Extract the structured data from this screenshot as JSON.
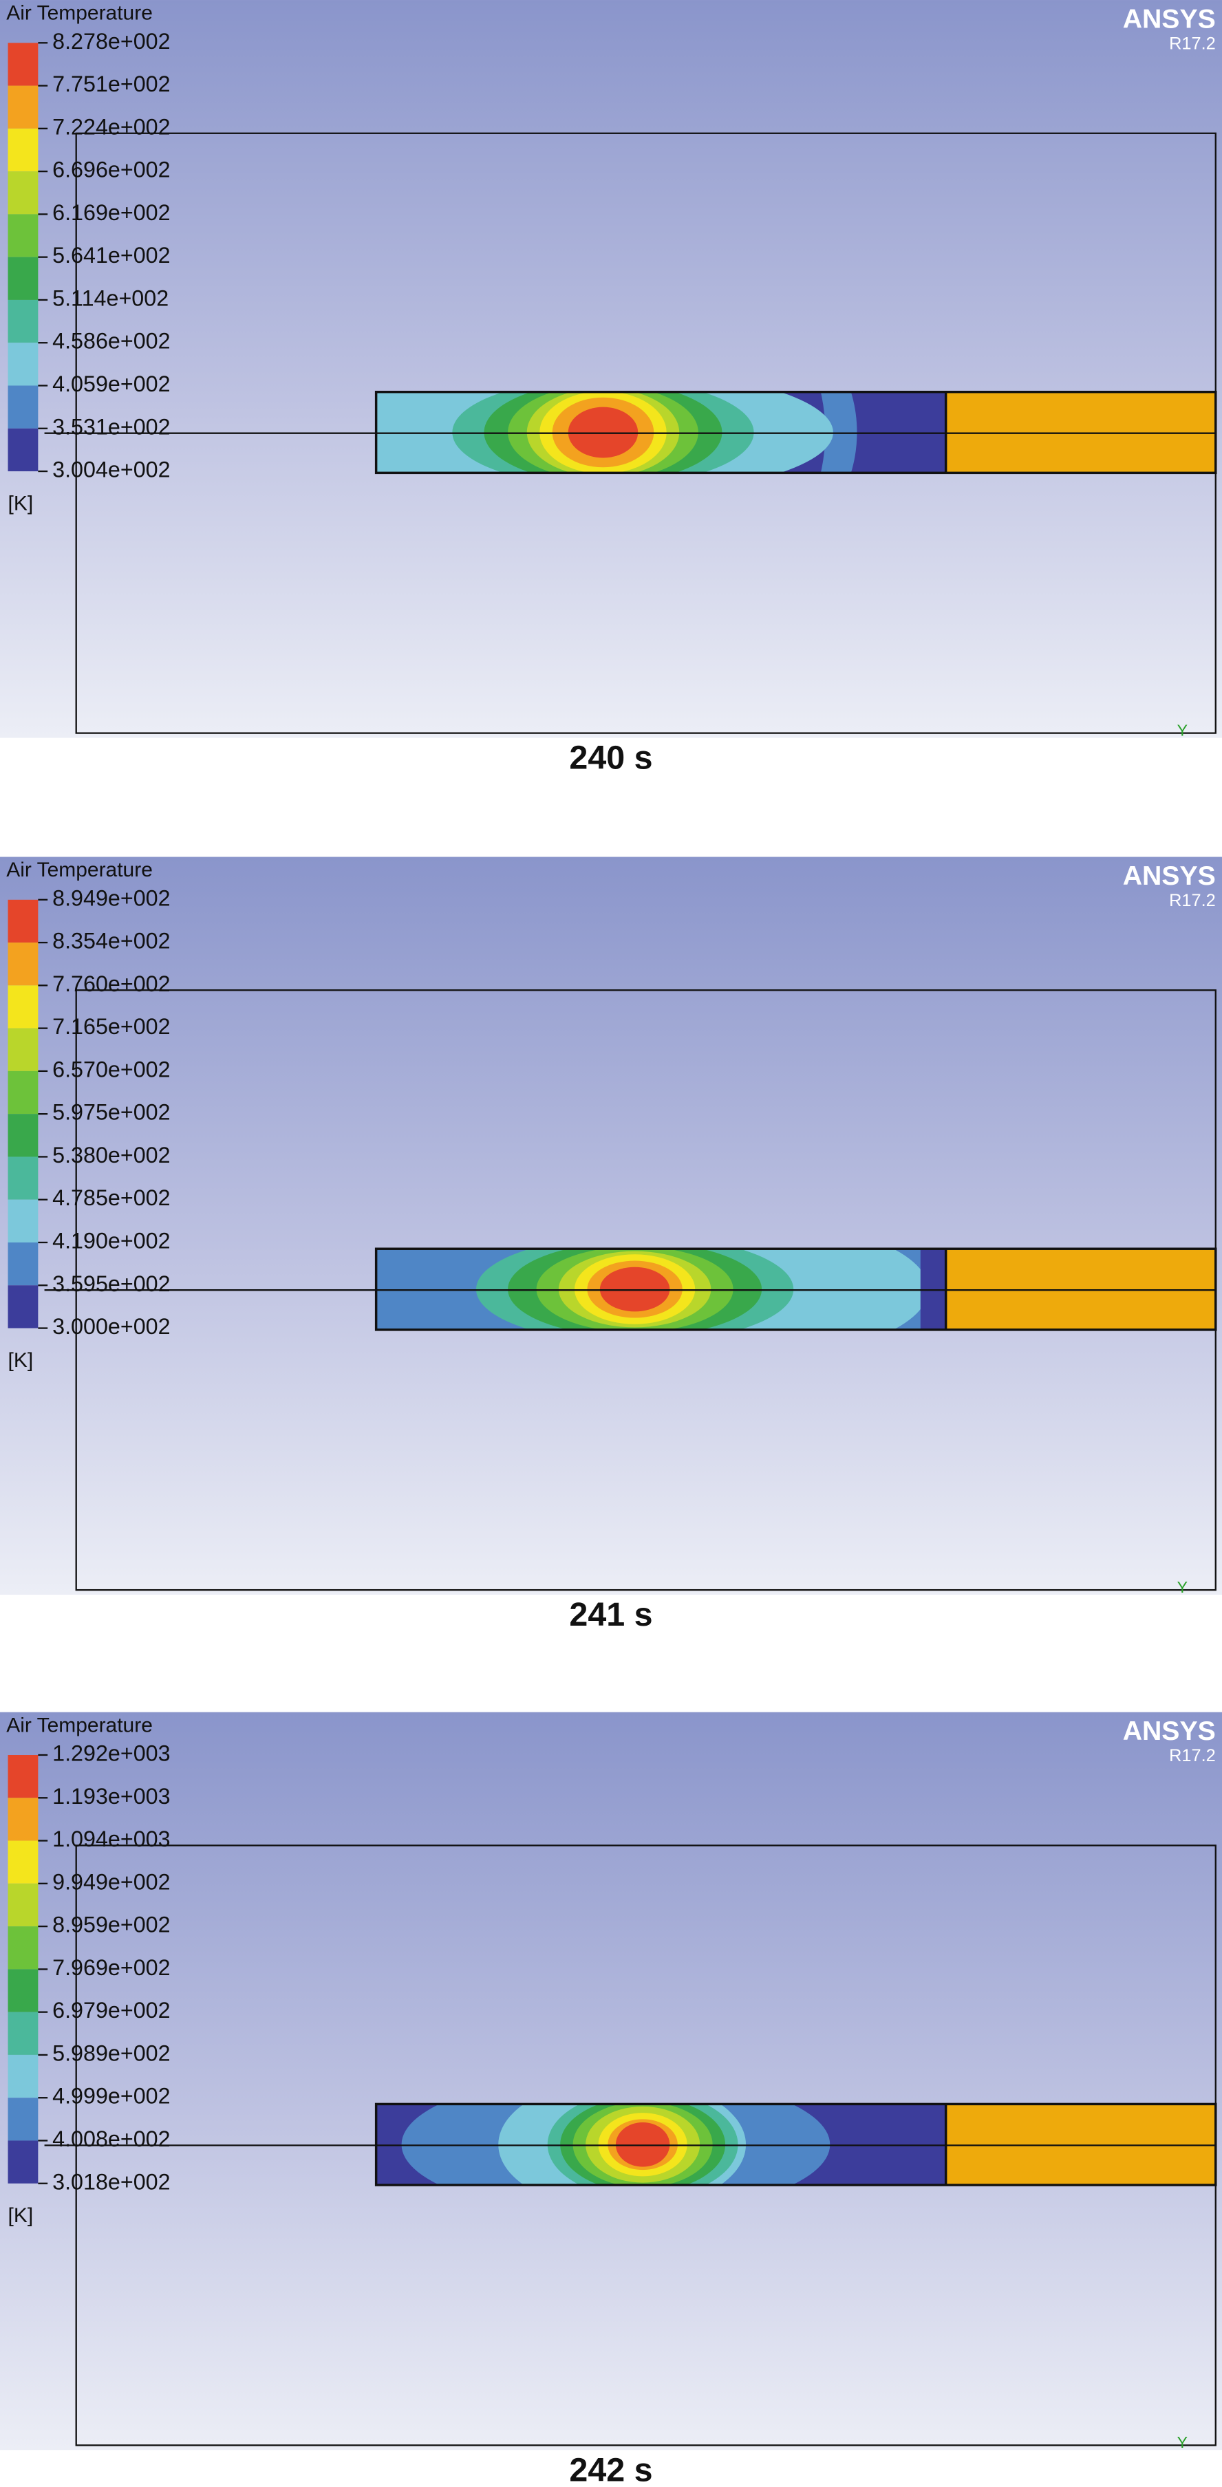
{
  "panels": [
    {
      "legend_title": "Air Temperature",
      "levels": [
        "8.278e+002",
        "7.751e+002",
        "7.224e+002",
        "6.696e+002",
        "6.169e+002",
        "5.641e+002",
        "5.114e+002",
        "4.586e+002",
        "4.059e+002",
        "3.531e+002",
        "3.004e+002"
      ],
      "unit": "[K]",
      "brand": "ANSYS",
      "version": "R17.2",
      "axis_label": "Y",
      "caption": "240 s"
    },
    {
      "legend_title": "Air Temperature",
      "levels": [
        "8.949e+002",
        "8.354e+002",
        "7.760e+002",
        "7.165e+002",
        "6.570e+002",
        "5.975e+002",
        "5.380e+002",
        "4.785e+002",
        "4.190e+002",
        "3.595e+002",
        "3.000e+002"
      ],
      "unit": "[K]",
      "brand": "ANSYS",
      "version": "R17.2",
      "axis_label": "Y",
      "caption": "241 s"
    },
    {
      "legend_title": "Air Temperature",
      "levels": [
        "1.292e+003",
        "1.193e+003",
        "1.094e+003",
        "9.949e+002",
        "8.959e+002",
        "7.969e+002",
        "6.979e+002",
        "5.989e+002",
        "4.999e+002",
        "4.008e+002",
        "3.018e+002"
      ],
      "unit": "[K]",
      "brand": "ANSYS",
      "version": "R17.2",
      "axis_label": "Y",
      "caption": "242 s"
    }
  ]
}
